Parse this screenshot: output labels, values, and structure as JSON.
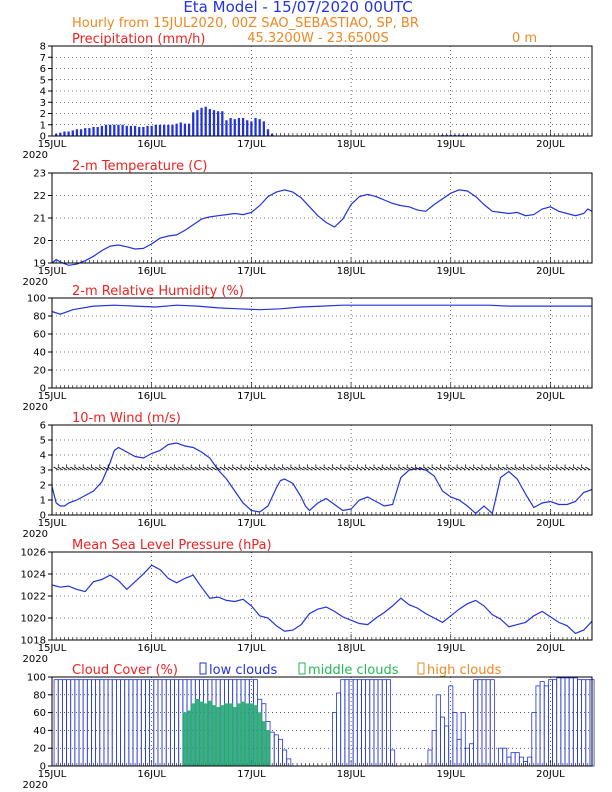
{
  "header": {
    "title": "Eta Model - 15/07/2020 00UTC",
    "subtitle": "Hourly from 15JUL2020, 00Z  SAO_SEBASTIAO, SP, BR",
    "coords": "45.3200W - 23.6500S",
    "elevation": "0  m"
  },
  "x_axis": {
    "day_labels": [
      "15JUL",
      "16JUL",
      "17JUL",
      "18JUL",
      "19JUL",
      "20JUL"
    ],
    "year": "2020",
    "hours_total": 130
  },
  "colors": {
    "series": "#2233dd",
    "panel_title": "#ee2222",
    "low_clouds": "#2233dd",
    "middle_clouds": "#22bb55",
    "high_clouds": "#ee8822"
  },
  "legend": {
    "low": "low clouds",
    "middle": "middle clouds",
    "high": "high clouds"
  },
  "chart_data": [
    {
      "id": "precip",
      "type": "bar",
      "title": "Precipitation (mm/h)",
      "ylim": [
        0,
        8
      ],
      "yticks": [
        "0",
        "1",
        "2",
        "3",
        "4",
        "5",
        "6",
        "7",
        "8"
      ],
      "x_hours": [
        1,
        2,
        3,
        4,
        5,
        6,
        7,
        8,
        9,
        10,
        11,
        12,
        13,
        14,
        15,
        16,
        17,
        18,
        19,
        20,
        21,
        22,
        23,
        24,
        25,
        26,
        27,
        28,
        29,
        30,
        31,
        32,
        33,
        34,
        35,
        36,
        37,
        38,
        39,
        40,
        41,
        42,
        43,
        44,
        45,
        46,
        47,
        48,
        49,
        50,
        51,
        52,
        53,
        94,
        95,
        96,
        97,
        98,
        99,
        100
      ],
      "values": [
        0.2,
        0.3,
        0.4,
        0.4,
        0.5,
        0.6,
        0.6,
        0.7,
        0.7,
        0.8,
        0.8,
        0.9,
        1.0,
        1.0,
        1.0,
        1.0,
        1.0,
        0.9,
        0.9,
        0.9,
        0.8,
        0.8,
        0.9,
        0.9,
        1.0,
        1.0,
        1.0,
        1.0,
        1.0,
        1.1,
        1.2,
        1.1,
        1.1,
        2.1,
        2.3,
        2.5,
        2.6,
        2.4,
        2.3,
        2.2,
        2.2,
        1.4,
        1.6,
        1.5,
        1.6,
        1.6,
        1.4,
        1.3,
        1.6,
        1.5,
        1.3,
        0.6,
        0.2,
        0.1,
        0.1,
        0.1,
        0.1,
        0.1,
        0.1,
        0.1
      ]
    },
    {
      "id": "temperature",
      "type": "line",
      "title": "2-m Temperature (C)",
      "ylim": [
        19,
        23
      ],
      "yticks": [
        "19",
        "20",
        "21",
        "22",
        "23"
      ],
      "x": [
        0,
        1,
        2,
        4,
        6,
        8,
        10,
        12,
        14,
        16,
        18,
        20,
        22,
        24,
        26,
        28,
        30,
        32,
        34,
        36,
        38,
        40,
        42,
        44,
        46,
        48,
        50,
        52,
        54,
        56,
        58,
        60,
        62,
        64,
        66,
        68,
        70,
        72,
        74,
        76,
        78,
        80,
        82,
        84,
        86,
        88,
        90,
        92,
        94,
        96,
        98,
        100,
        102,
        104,
        106,
        108,
        110,
        112,
        114,
        116,
        118,
        120,
        122,
        124,
        126,
        128,
        129,
        130
      ],
      "y": [
        19.0,
        19.15,
        19.05,
        18.9,
        18.95,
        19.1,
        19.3,
        19.55,
        19.75,
        19.8,
        19.72,
        19.62,
        19.65,
        19.85,
        20.1,
        20.2,
        20.25,
        20.45,
        20.7,
        20.95,
        21.05,
        21.1,
        21.15,
        21.2,
        21.15,
        21.25,
        21.55,
        21.95,
        22.15,
        22.25,
        22.15,
        21.9,
        21.5,
        21.1,
        20.8,
        20.6,
        20.95,
        21.6,
        21.95,
        22.05,
        21.95,
        21.8,
        21.65,
        21.55,
        21.5,
        21.35,
        21.3,
        21.6,
        21.85,
        22.1,
        22.25,
        22.2,
        21.95,
        21.6,
        21.3,
        21.25,
        21.2,
        21.25,
        21.1,
        21.15,
        21.4,
        21.5,
        21.3,
        21.2,
        21.1,
        21.2,
        21.4,
        21.3
      ]
    },
    {
      "id": "humidity",
      "type": "line",
      "title": "2-m Relative Humidity (%)",
      "ylim": [
        0,
        100
      ],
      "yticks": [
        "0",
        "20",
        "40",
        "60",
        "80",
        "100"
      ],
      "x": [
        0,
        2,
        5,
        10,
        15,
        20,
        25,
        30,
        35,
        40,
        45,
        50,
        55,
        60,
        65,
        70,
        75,
        80,
        85,
        90,
        95,
        100,
        105,
        110,
        115,
        120,
        125,
        130
      ],
      "y": [
        85,
        82,
        87,
        91,
        92,
        91,
        90,
        92,
        91,
        89,
        88,
        87,
        88,
        90,
        91,
        92,
        92,
        92,
        92,
        92,
        92,
        92,
        92,
        91,
        91,
        91,
        91,
        91
      ]
    },
    {
      "id": "wind",
      "type": "line",
      "title": "10-m Wind (m/s)",
      "ylim": [
        0,
        6
      ],
      "yticks": [
        "0",
        "1",
        "2",
        "3",
        "4",
        "5",
        "6"
      ],
      "barb_level": 3.1,
      "x": [
        0,
        1,
        2,
        3,
        4,
        6,
        8,
        10,
        12,
        14,
        15,
        16,
        18,
        20,
        22,
        24,
        26,
        28,
        30,
        32,
        34,
        36,
        38,
        40,
        42,
        44,
        46,
        48,
        50,
        52,
        54,
        55,
        56,
        58,
        60,
        61,
        62,
        64,
        66,
        68,
        70,
        72,
        74,
        76,
        78,
        80,
        82,
        84,
        86,
        88,
        90,
        92,
        94,
        96,
        98,
        100,
        102,
        104,
        106,
        108,
        110,
        112,
        114,
        116,
        118,
        120,
        122,
        124,
        126,
        128,
        130
      ],
      "y": [
        1.9,
        0.8,
        0.6,
        0.6,
        0.8,
        1.0,
        1.3,
        1.6,
        2.2,
        3.5,
        4.3,
        4.5,
        4.2,
        3.9,
        3.8,
        4.1,
        4.3,
        4.7,
        4.8,
        4.6,
        4.5,
        4.2,
        3.8,
        3.0,
        2.4,
        1.6,
        0.8,
        0.3,
        0.2,
        0.6,
        1.8,
        2.3,
        2.4,
        2.1,
        1.2,
        0.6,
        0.3,
        0.8,
        1.1,
        0.7,
        0.3,
        0.4,
        1.0,
        1.2,
        0.9,
        0.6,
        0.7,
        2.5,
        3.0,
        3.1,
        3.0,
        2.6,
        1.6,
        1.2,
        1.0,
        0.6,
        0.1,
        0.6,
        0.1,
        2.5,
        2.9,
        2.4,
        1.4,
        0.5,
        0.8,
        0.9,
        0.7,
        0.7,
        0.9,
        1.5,
        1.7
      ]
    },
    {
      "id": "pressure",
      "type": "line",
      "title": "Mean Sea Level Pressure (hPa)",
      "ylim": [
        1018,
        1026
      ],
      "yticks": [
        "1018",
        "1020",
        "1022",
        "1024",
        "1026"
      ],
      "x": [
        0,
        2,
        4,
        6,
        8,
        10,
        12,
        14,
        16,
        18,
        20,
        22,
        24,
        26,
        28,
        30,
        32,
        34,
        36,
        38,
        40,
        42,
        44,
        46,
        48,
        50,
        52,
        54,
        56,
        58,
        60,
        62,
        64,
        66,
        68,
        70,
        72,
        74,
        76,
        78,
        80,
        82,
        84,
        86,
        88,
        90,
        92,
        94,
        96,
        98,
        100,
        102,
        104,
        106,
        108,
        110,
        112,
        114,
        116,
        118,
        120,
        122,
        124,
        126,
        128,
        130
      ],
      "y": [
        1023.0,
        1022.8,
        1022.9,
        1022.6,
        1022.4,
        1023.3,
        1023.5,
        1023.9,
        1023.4,
        1022.6,
        1023.3,
        1024.0,
        1024.8,
        1024.4,
        1023.6,
        1023.2,
        1023.6,
        1023.9,
        1022.8,
        1021.8,
        1021.9,
        1021.6,
        1021.5,
        1021.7,
        1021.1,
        1020.2,
        1020.0,
        1019.3,
        1018.8,
        1018.9,
        1019.4,
        1020.4,
        1020.8,
        1021.0,
        1020.6,
        1020.1,
        1019.8,
        1019.5,
        1019.4,
        1020.0,
        1020.5,
        1021.1,
        1021.8,
        1021.2,
        1020.9,
        1020.4,
        1020.0,
        1019.6,
        1020.2,
        1020.8,
        1021.3,
        1021.6,
        1021.1,
        1020.3,
        1019.9,
        1019.2,
        1019.4,
        1019.6,
        1020.2,
        1020.6,
        1020.1,
        1019.6,
        1019.3,
        1018.6,
        1018.9,
        1019.7
      ]
    },
    {
      "id": "clouds",
      "type": "bar",
      "title": "Cloud Cover (%)",
      "ylim": [
        0,
        100
      ],
      "yticks": [
        "0",
        "20",
        "40",
        "60",
        "80",
        "100"
      ],
      "low": {
        "x": [
          1,
          2,
          3,
          4,
          5,
          6,
          7,
          8,
          9,
          10,
          11,
          12,
          13,
          14,
          15,
          16,
          17,
          18,
          19,
          20,
          21,
          22,
          23,
          24,
          25,
          26,
          27,
          28,
          29,
          30,
          31,
          32,
          33,
          34,
          35,
          36,
          37,
          38,
          39,
          40,
          41,
          42,
          43,
          44,
          45,
          46,
          47,
          48,
          49,
          50,
          51,
          52,
          53,
          54,
          55,
          56,
          57,
          68,
          69,
          70,
          71,
          72,
          73,
          74,
          75,
          76,
          77,
          78,
          79,
          80,
          81,
          82,
          91,
          92,
          93,
          94,
          95,
          96,
          97,
          98,
          99,
          100,
          101,
          102,
          103,
          104,
          105,
          106,
          108,
          109,
          110,
          111,
          112,
          113,
          114,
          115,
          116,
          117,
          118,
          119,
          120,
          121,
          122,
          123,
          124,
          125,
          126,
          127,
          128,
          129,
          130
        ],
        "values": [
          97,
          97,
          97,
          97,
          97,
          97,
          97,
          97,
          97,
          97,
          97,
          97,
          97,
          97,
          97,
          97,
          97,
          97,
          97,
          97,
          97,
          97,
          97,
          97,
          97,
          97,
          97,
          97,
          97,
          97,
          97,
          97,
          97,
          97,
          97,
          97,
          97,
          97,
          97,
          97,
          97,
          97,
          97,
          97,
          97,
          97,
          97,
          97,
          97,
          75,
          70,
          50,
          38,
          35,
          30,
          18,
          8,
          60,
          82,
          97,
          97,
          97,
          97,
          97,
          97,
          97,
          97,
          97,
          97,
          97,
          97,
          18,
          18,
          40,
          80,
          55,
          45,
          90,
          60,
          30,
          60,
          20,
          25,
          97,
          97,
          97,
          97,
          97,
          20,
          20,
          10,
          15,
          15,
          10,
          5,
          10,
          60,
          90,
          95,
          90,
          97,
          97,
          99,
          99,
          99,
          99,
          99,
          97,
          97,
          97,
          97
        ]
      },
      "middle": {
        "x": [
          32,
          33,
          34,
          35,
          36,
          37,
          38,
          39,
          40,
          41,
          42,
          43,
          44,
          45,
          46,
          47,
          48,
          49,
          50,
          51,
          52
        ],
        "values": [
          60,
          62,
          70,
          75,
          72,
          70,
          73,
          68,
          66,
          68,
          70,
          70,
          66,
          70,
          72,
          70,
          70,
          68,
          60,
          50,
          40
        ]
      }
    }
  ]
}
